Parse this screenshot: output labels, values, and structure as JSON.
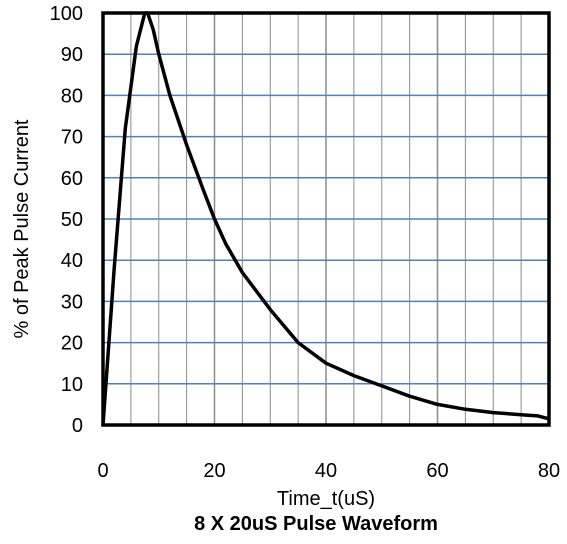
{
  "chart_data": {
    "type": "line",
    "title": "8 X 20uS Pulse Waveform",
    "xlabel": "Time_t(uS)",
    "ylabel": "% of Peak Pulse Current",
    "xlim": [
      0,
      80
    ],
    "ylim": [
      0,
      100
    ],
    "x_ticks": [
      0,
      20,
      40,
      60,
      80
    ],
    "y_ticks": [
      0,
      10,
      20,
      30,
      40,
      50,
      60,
      70,
      80,
      90,
      100
    ],
    "x_minor_grid_step": 5,
    "grid": true,
    "colors": {
      "line": "#000000",
      "h_grid": "#4f81bd",
      "v_grid": "#8c8c8c",
      "frame": "#000000"
    },
    "series": [
      {
        "x": [
          0,
          2,
          4,
          6,
          7.5,
          8,
          9,
          10,
          12,
          15,
          18,
          20,
          22,
          25,
          30,
          35,
          40,
          45,
          50,
          55,
          60,
          65,
          70,
          75,
          78,
          80
        ],
        "y": [
          0,
          38,
          72,
          92,
          100,
          100,
          96,
          90,
          80,
          68,
          57,
          50,
          44,
          37,
          28,
          20,
          15,
          12,
          9.5,
          7,
          5,
          3.8,
          3,
          2.5,
          2.2,
          1.5
        ]
      }
    ]
  }
}
